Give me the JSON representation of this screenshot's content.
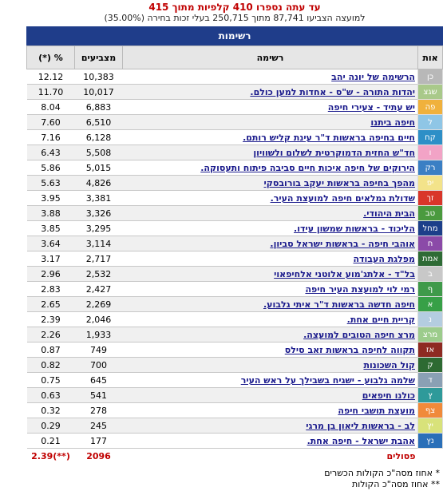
{
  "header": {
    "title": "עד עתה נספרו 410 קלפיות מתוך 415",
    "subtitle": "למועצה הצביעו 87,741 מתוך 250,715 בעלי זכות בחירה (35.00%)"
  },
  "table": {
    "section": "רשימות",
    "columns": [
      "אות",
      "רשימה",
      "מצביעים",
      "% (*)"
    ],
    "rows": [
      {
        "letter": "כן",
        "name": "הרשימה של יונה יהב",
        "votes": "10,383",
        "pct": "12.12",
        "color": "#b8b8b8"
      },
      {
        "letter": "שגצ",
        "name": "יהדות התורה - ש\"ס - אחדות למען כולם.",
        "votes": "10,017",
        "pct": "11.70",
        "color": "#a9c98a"
      },
      {
        "letter": "פה",
        "name": "יש עתיד - צעירי חיפה",
        "votes": "6,883",
        "pct": "8.04",
        "color": "#f0b13c"
      },
      {
        "letter": "ל",
        "name": "חיפה ביתנו",
        "votes": "6,510",
        "pct": "7.60",
        "color": "#8fc6e6"
      },
      {
        "letter": "קח",
        "name": "חיים בחיפה בראשות ד\"ר עינת קליש רותם.",
        "votes": "6,128",
        "pct": "7.16",
        "color": "#2d8fc7"
      },
      {
        "letter": "ו",
        "name": "חד\"ש החזית הדמוקרטית לשלום ולשוויון",
        "votes": "5,508",
        "pct": "6.43",
        "color": "#f2a3c6"
      },
      {
        "letter": "רק",
        "name": "הירוקים של חיפה איכות חיים סביבה פיתוח ותעסוקה.",
        "votes": "5,015",
        "pct": "5.86",
        "color": "#3b7fc4"
      },
      {
        "letter": "יפ",
        "name": "מהפך בחיפה בראשות יעקב בורובסקי",
        "votes": "4,826",
        "pct": "5.63",
        "color": "#f3e38a"
      },
      {
        "letter": "זך",
        "name": "שדולת גמלאים חיפה למועצת העיר.",
        "votes": "3,381",
        "pct": "3.95",
        "color": "#d9362a"
      },
      {
        "letter": "טב",
        "name": "הבית היהודי.",
        "votes": "3,326",
        "pct": "3.88",
        "color": "#4a9a3e"
      },
      {
        "letter": "מחל",
        "name": "הליכוד - בראשות שמשון עידו.",
        "votes": "3,295",
        "pct": "3.85",
        "color": "#1c3f8a"
      },
      {
        "letter": "ח",
        "name": "אוהבי חיפה - בראשות ישראל סביון.",
        "votes": "3,114",
        "pct": "3.64",
        "color": "#8b4aa8"
      },
      {
        "letter": "אמת",
        "name": "מפלגת העבודה",
        "votes": "2,717",
        "pct": "3.17",
        "color": "#2e6b35"
      },
      {
        "letter": "ב",
        "name": "בל\"ד - אלתג'מוע אלוטני אלחיפאוי",
        "votes": "2,532",
        "pct": "2.96",
        "color": "#c8c8c8"
      },
      {
        "letter": "ף",
        "name": "רמי לוי למועצת העיר חיפה",
        "votes": "2,427",
        "pct": "2.83",
        "color": "#3f9a4a"
      },
      {
        "letter": "א",
        "name": "חיפה חדשה בראשות ד\"ר איתי גלבוע.",
        "votes": "2,269",
        "pct": "2.65",
        "color": "#37a047"
      },
      {
        "letter": "נ",
        "name": "קריית חיים אחת.",
        "votes": "2,046",
        "pct": "2.39",
        "color": "#b4cde0"
      },
      {
        "letter": "מרצ",
        "name": "מרצ חיפה הטובים למועצה.",
        "votes": "1,933",
        "pct": "2.26",
        "color": "#9ccc8c"
      },
      {
        "letter": "אז",
        "name": "תקווה לחיפה בראשות זאב סילס",
        "votes": "749",
        "pct": "0.87",
        "color": "#8e2a22"
      },
      {
        "letter": "ק",
        "name": "קול השכונות",
        "votes": "700",
        "pct": "0.82",
        "color": "#2d6a32"
      },
      {
        "letter": "ד",
        "name": "שלמה גלבוע - ישגיח בשבילך על ראש העיר",
        "votes": "645",
        "pct": "0.75",
        "color": "#8aa0b4"
      },
      {
        "letter": "ץ",
        "name": "כולנו חיפאים",
        "votes": "541",
        "pct": "0.63",
        "color": "#2e9a9a"
      },
      {
        "letter": "צף",
        "name": "מועצת תושבי חיפה",
        "votes": "278",
        "pct": "0.32",
        "color": "#f08a3a"
      },
      {
        "letter": "יץ",
        "name": "לב - בראשות ליאון בן מרגי",
        "votes": "245",
        "pct": "0.29",
        "color": "#d8e27a"
      },
      {
        "letter": "נץ",
        "name": "אהבת ישראל - חיפה אחת.",
        "votes": "177",
        "pct": "0.21",
        "color": "#2a6fb8"
      }
    ],
    "invalid": {
      "label": "פסולים",
      "votes": "2096",
      "pct": "(**)2.39"
    }
  },
  "notes": [
    "* אחוז מסה\"כ הקולות הכשרים",
    "** אחוז מסה\"כ הקולות"
  ]
}
